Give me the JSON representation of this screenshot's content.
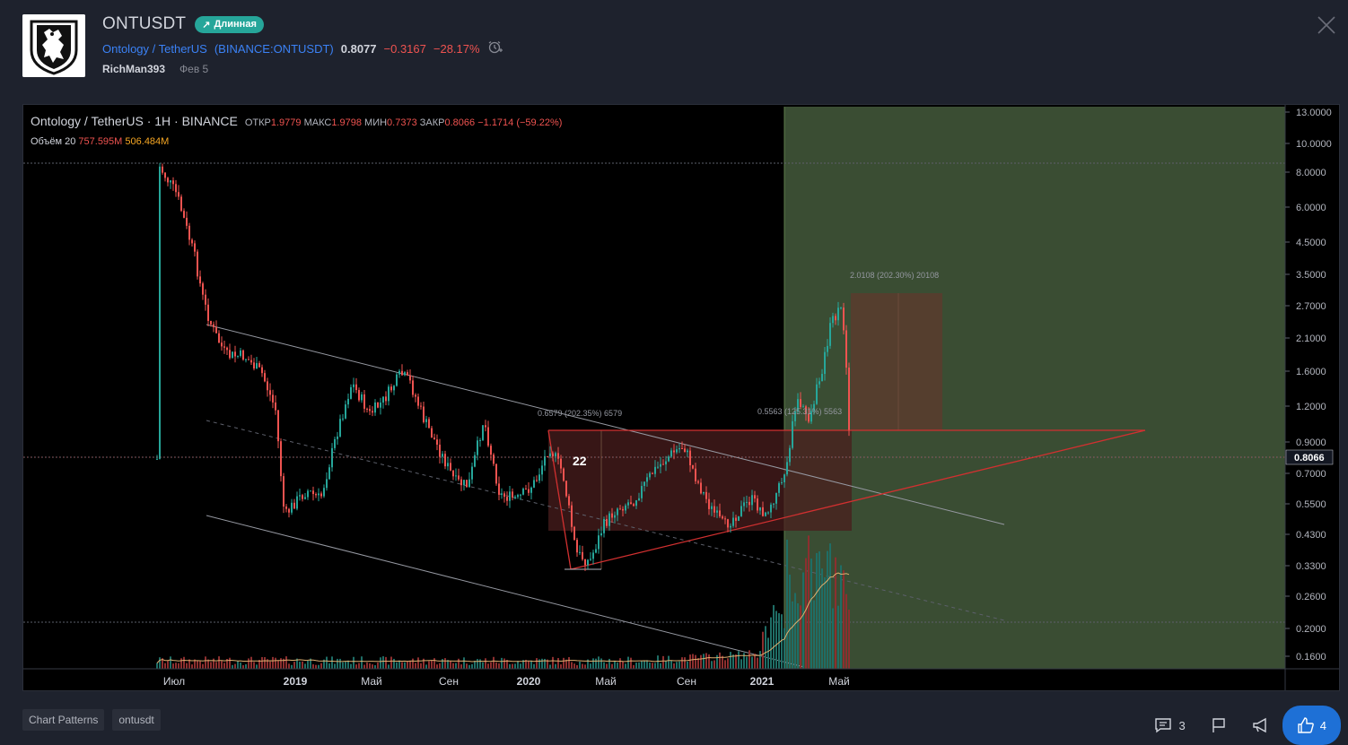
{
  "header": {
    "symbol": "ONTUSDT",
    "badge_label": "Длинная",
    "pair_name": "Ontology / TetherUS",
    "exchange_ticker": "BINANCE:ONTUSDT",
    "price": "0.8077",
    "change": "−0.3167",
    "change_pct": "−28.17%",
    "author": "RichMan393",
    "date": "Фев 5"
  },
  "chart": {
    "legend_title": "Ontology / TetherUS · 1H · BINANCE",
    "ohlc": {
      "open_label": "ОТКР",
      "open": "1.9779",
      "high_label": "МАКС",
      "high": "1.9798",
      "low_label": "МИН",
      "low": "0.7373",
      "close_label": "ЗАКР",
      "close": "0.8066",
      "change": "−1.1714 (−59.22%)"
    },
    "volume_label": "Объём 20",
    "volume_value1": "757.595M",
    "volume_value2": "506.484M",
    "price_axis": [
      "13.0000",
      "10.0000",
      "8.0000",
      "6.0000",
      "4.5000",
      "3.5000",
      "2.7000",
      "2.1000",
      "1.6000",
      "1.2000",
      "0.9000",
      "0.7000",
      "0.5500",
      "0.4300",
      "0.3300",
      "0.2600",
      "0.2000",
      "0.1600"
    ],
    "current_price_tag": "0.8066",
    "time_axis": [
      "Июл",
      "2019",
      "Май",
      "Сен",
      "2020",
      "Май",
      "Сен",
      "2021",
      "Май"
    ],
    "annotations": {
      "measure1": "0.6579 (202.35%) 6579",
      "measure2": "0.5563 (125.31%) 5563",
      "measure3": "2.0108 (202.30%) 20108",
      "count_label": "22"
    },
    "colors": {
      "up": "#26a69a",
      "down": "#ef5350",
      "target_zone": "#3a4d33",
      "stop_zone": "#5a2a28"
    }
  },
  "tags": [
    "Chart Patterns",
    "ontusdt"
  ],
  "actions": {
    "comments_count": "3",
    "likes_count": "4"
  }
}
